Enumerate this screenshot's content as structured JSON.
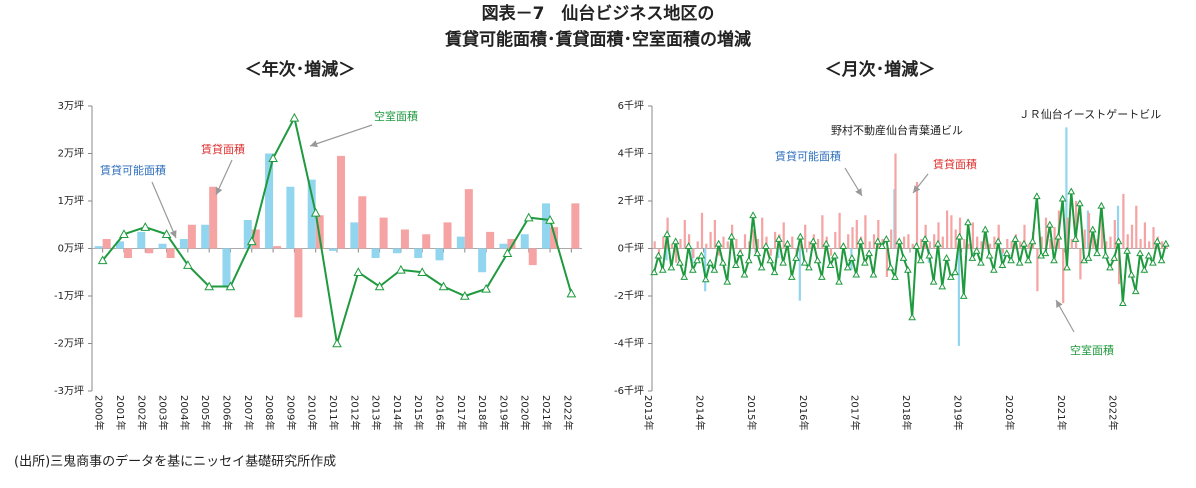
{
  "title": [
    "図表－7　仙台ビジネス地区の",
    "賃貸可能面積･賃貸面積･空室面積の増減"
  ],
  "source": "(出所)三鬼商事のデータを基にニッセイ基礎研究所作成",
  "chart_data": [
    {
      "type": "bar",
      "title": "＜年次･増減＞",
      "categories": [
        "2000年",
        "2001年",
        "2002年",
        "2003年",
        "2004年",
        "2005年",
        "2006年",
        "2007年",
        "2008年",
        "2009年",
        "2010年",
        "2011年",
        "2012年",
        "2013年",
        "2014年",
        "2015年",
        "2016年",
        "2017年",
        "2018年",
        "2019年",
        "2020年",
        "2021年",
        "2022年"
      ],
      "series": [
        {
          "name": "賃貸可能面積",
          "type": "bar",
          "color": "#92d5ee",
          "values": [
            0.05,
            0.15,
            0.35,
            0.1,
            0.2,
            0.5,
            -0.8,
            0.6,
            2.0,
            1.3,
            1.45,
            -0.05,
            0.55,
            -0.2,
            -0.1,
            -0.2,
            -0.25,
            0.25,
            -0.5,
            0.1,
            0.3,
            0.95,
            0
          ]
        },
        {
          "name": "賃貸面積",
          "type": "bar",
          "color": "#f5a3a3",
          "values": [
            0.2,
            -0.2,
            -0.1,
            -0.2,
            0.5,
            1.3,
            0,
            0.4,
            0.05,
            -1.45,
            0.7,
            1.95,
            1.1,
            0.65,
            0.4,
            0.3,
            0.55,
            1.25,
            0.35,
            0.2,
            -0.35,
            0.45,
            0.95
          ]
        },
        {
          "name": "空室面積",
          "type": "line",
          "color": "#1f9a3f",
          "values": [
            -0.25,
            0.3,
            0.45,
            0.3,
            -0.35,
            -0.8,
            -0.8,
            0.15,
            1.9,
            2.75,
            0.75,
            -2.0,
            -0.5,
            -0.8,
            -0.45,
            -0.5,
            -0.8,
            -1.0,
            -0.85,
            -0.1,
            0.65,
            0.6,
            -0.95
          ]
        }
      ],
      "annotations": [
        "空室面積",
        "賃貸面積",
        "賃貸可能面積"
      ],
      "ylim": [
        -3,
        3
      ],
      "yticks": [
        {
          "value": 3,
          "label": "3万坪"
        },
        {
          "value": 2,
          "label": "2万坪"
        },
        {
          "value": 1,
          "label": "1万坪"
        },
        {
          "value": 0,
          "label": "0万坪"
        },
        {
          "value": -1,
          "label": "-1万坪"
        },
        {
          "value": -2,
          "label": "-2万坪"
        },
        {
          "value": -3,
          "label": "-3万坪"
        }
      ]
    },
    {
      "type": "bar",
      "title": "＜月次･増減＞",
      "categories": [
        "2013年",
        null,
        null,
        null,
        null,
        null,
        null,
        null,
        null,
        null,
        null,
        null,
        "2014年",
        null,
        null,
        null,
        null,
        null,
        null,
        null,
        null,
        null,
        null,
        null,
        "2015年",
        null,
        null,
        null,
        null,
        null,
        null,
        null,
        null,
        null,
        null,
        null,
        "2016年",
        null,
        null,
        null,
        null,
        null,
        null,
        null,
        null,
        null,
        null,
        null,
        "2017年",
        null,
        null,
        null,
        null,
        null,
        null,
        null,
        null,
        null,
        null,
        null,
        "2018年",
        null,
        null,
        null,
        null,
        null,
        null,
        null,
        null,
        null,
        null,
        null,
        "2019年",
        null,
        null,
        null,
        null,
        null,
        null,
        null,
        null,
        null,
        null,
        null,
        "2020年",
        null,
        null,
        null,
        null,
        null,
        null,
        null,
        null,
        null,
        null,
        null,
        "2021年",
        null,
        null,
        null,
        null,
        null,
        null,
        null,
        null,
        null,
        null,
        null,
        "2022年",
        null,
        null,
        null,
        null,
        null,
        null,
        null,
        null,
        null,
        null,
        null
      ],
      "series": [
        {
          "name": "賃貸可能面積",
          "type": "bar",
          "color": "#92d5ee",
          "values": [
            0,
            0,
            0,
            -0.5,
            0,
            0,
            0,
            0,
            0,
            -0.8,
            0,
            0,
            -1.8,
            0,
            0,
            0,
            0,
            0,
            0.4,
            0,
            0,
            0,
            0,
            0,
            0,
            0,
            0,
            0,
            0,
            -0.4,
            0,
            0,
            0,
            0,
            -2.2,
            0,
            0,
            0,
            0,
            0,
            0,
            0,
            0,
            0,
            0,
            0,
            -0.9,
            0,
            0,
            0,
            0,
            0,
            0,
            0,
            0,
            0,
            2.5,
            0,
            0,
            0,
            0,
            0,
            0,
            0,
            -0.6,
            0,
            0,
            0,
            0,
            0,
            0,
            -4.1,
            0,
            0,
            0,
            0,
            0,
            0,
            0,
            0,
            0,
            -0.5,
            0,
            0,
            0,
            0,
            0,
            0,
            0,
            0,
            0,
            0,
            0,
            0,
            0,
            0,
            5.1,
            0,
            0,
            0,
            0,
            1.6,
            0,
            0,
            0,
            0,
            0,
            0,
            1.8,
            0,
            0,
            0,
            0,
            0,
            0,
            0,
            0,
            0,
            0,
            0
          ]
        },
        {
          "name": "賃貸面積",
          "type": "bar",
          "color": "#f5a3a3",
          "values": [
            0.3,
            -0.5,
            0.5,
            1.3,
            0.2,
            -0.6,
            0.4,
            1.2,
            0.6,
            -0.4,
            0.3,
            1.5,
            0.2,
            0.7,
            1.2,
            -0.3,
            0.5,
            0.3,
            1.0,
            0.4,
            -0.2,
            0.6,
            0.3,
            0.8,
            0.4,
            1.3,
            0.5,
            -0.3,
            0.7,
            0.6,
            1.1,
            0.3,
            0.5,
            -0.5,
            0.2,
            1.0,
            0.3,
            0.6,
            0.4,
            1.4,
            0.5,
            -0.3,
            0.7,
            1.5,
            0.2,
            0.6,
            0.9,
            1.2,
            0.5,
            1.4,
            0.3,
            0.6,
            1.2,
            0.4,
            -1.2,
            0.8,
            4.0,
            0.3,
            0.5,
            0.6,
            0.2,
            2.8,
            0.4,
            1.0,
            0.3,
            0.6,
            1.1,
            0.5,
            1.6,
            1.4,
            0.8,
            1.3,
            0.4,
            0.2,
            1.1,
            0.5,
            0.3,
            0.8,
            0.2,
            0.5,
            1.0,
            -0.2,
            0.4,
            0.3,
            0.6,
            0.3,
            1.0,
            0.2,
            0.7,
            -1.8,
            0.5,
            1.3,
            0.4,
            0.9,
            1.6,
            -2.3,
            1.3,
            0.4,
            2.0,
            -1.3,
            0.8,
            1.5,
            0.6,
            0.4,
            1.9,
            0.3,
            0.5,
            1.2,
            -1.5,
            2.3,
            0.6,
            1.0,
            1.8,
            0.4,
            1.1,
            0.3,
            0.9,
            0.5,
            0.3,
            0.2
          ]
        },
        {
          "name": "空室面積",
          "type": "line",
          "color": "#1f9a3f",
          "values": [
            -1.0,
            -0.3,
            -0.9,
            0.6,
            -0.8,
            0.3,
            -0.6,
            -1.2,
            0.1,
            -0.9,
            -0.5,
            -0.3,
            -1.3,
            -0.6,
            -0.9,
            0.2,
            -0.6,
            -1.4,
            0.5,
            -0.7,
            -0.2,
            -1.1,
            -0.5,
            1.4,
            -0.2,
            -0.8,
            0.1,
            -0.5,
            -1.0,
            0.4,
            -0.6,
            0.2,
            -1.2,
            -0.4,
            0.5,
            -0.6,
            -0.8,
            0.3,
            -0.5,
            -1.2,
            0.2,
            -0.7,
            -0.3,
            -1.4,
            0.1,
            -0.8,
            -0.4,
            -1.1,
            0.3,
            -0.6,
            -0.2,
            -1.1,
            0.3,
            0.1,
            0.4,
            -0.8,
            -1.2,
            0.3,
            -0.4,
            -0.9,
            -2.9,
            0.1,
            -0.5,
            0.4,
            -0.3,
            -1.4,
            0.2,
            -1.6,
            -0.4,
            -1.2,
            -1.0,
            0.5,
            -2.0,
            1.1,
            -0.4,
            -0.1,
            -0.6,
            0.8,
            -0.3,
            -0.9,
            0.3,
            -0.7,
            -0.2,
            -0.5,
            0.4,
            -0.6,
            0.2,
            -0.5,
            0.3,
            2.2,
            -0.3,
            -0.2,
            1.0,
            -0.5,
            0.5,
            2.1,
            -0.8,
            2.4,
            0.4,
            1.9,
            -0.5,
            -0.4,
            0.8,
            -0.2,
            1.8,
            -0.3,
            -0.8,
            -0.4,
            0.3,
            -2.3,
            -0.1,
            -1.1,
            -1.8,
            -0.2,
            -0.9,
            -0.3,
            -0.6,
            0.3,
            -0.5,
            0.2
          ]
        }
      ],
      "annotations": [
        "野村不動産仙台青葉通ビル",
        "ＪＲ仙台イーストゲートビル",
        "賃貸可能面積",
        "賃貸面積",
        "空室面積"
      ],
      "ylim": [
        -6,
        6
      ],
      "yticks": [
        {
          "value": 6,
          "label": "6千坪"
        },
        {
          "value": 4,
          "label": "4千坪"
        },
        {
          "value": 2,
          "label": "2千坪"
        },
        {
          "value": 0,
          "label": "0千坪"
        },
        {
          "value": -2,
          "label": "-2千坪"
        },
        {
          "value": -4,
          "label": "-4千坪"
        },
        {
          "value": -6,
          "label": "-6千坪"
        }
      ]
    }
  ]
}
